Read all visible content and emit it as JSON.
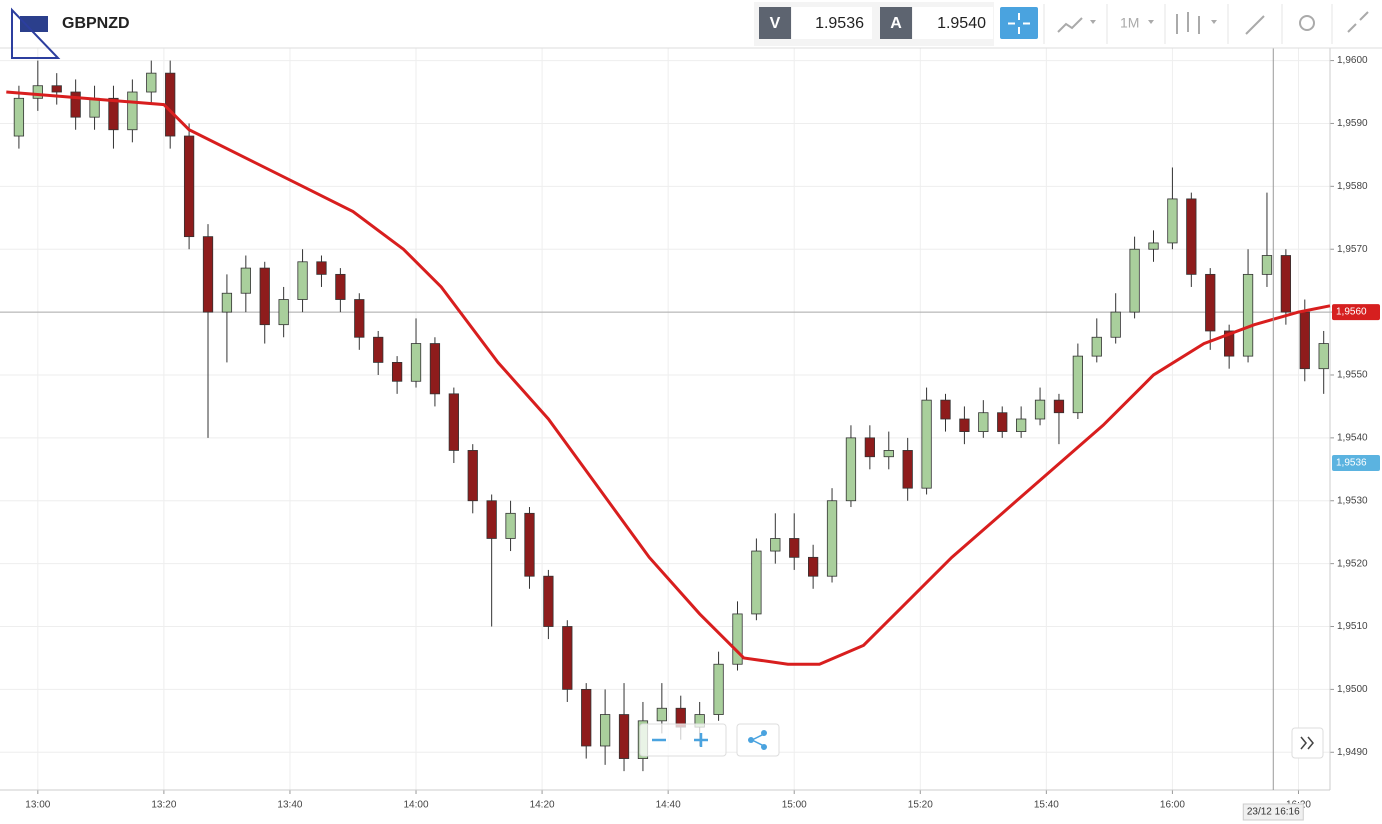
{
  "toolbar": {
    "symbol": "GBPNZD",
    "bid_label": "V",
    "bid": "1.9536",
    "ask_label": "A",
    "ask": "1.9540",
    "timeframe": "1M"
  },
  "chart_data": {
    "type": "candlestick",
    "up_color": "#a9cf9c",
    "down_color": "#8e1c1c",
    "x": [
      "12:57",
      "13:00",
      "13:03",
      "13:06",
      "13:09",
      "13:12",
      "13:15",
      "13:18",
      "13:21",
      "13:24",
      "13:27",
      "13:30",
      "13:33",
      "13:36",
      "13:39",
      "13:42",
      "13:45",
      "13:48",
      "13:51",
      "13:54",
      "13:57",
      "14:00",
      "14:03",
      "14:06",
      "14:09",
      "14:12",
      "14:15",
      "14:18",
      "14:21",
      "14:24",
      "14:27",
      "14:30",
      "14:33",
      "14:36",
      "14:39",
      "14:42",
      "14:45",
      "14:48",
      "14:51",
      "14:54",
      "14:57",
      "15:00",
      "15:03",
      "15:06",
      "15:09",
      "15:12",
      "15:15",
      "15:18",
      "15:21",
      "15:24",
      "15:27",
      "15:30",
      "15:33",
      "15:36",
      "15:39",
      "15:42",
      "15:45",
      "15:48",
      "15:51",
      "15:54",
      "15:57",
      "16:00",
      "16:03",
      "16:06",
      "16:09",
      "16:12",
      "16:15",
      "16:18",
      "16:21",
      "16:24"
    ],
    "open": [
      1.9588,
      1.9594,
      1.9596,
      1.9595,
      1.9591,
      1.9594,
      1.9589,
      1.9595,
      1.9598,
      1.9588,
      1.9572,
      1.956,
      1.9563,
      1.9567,
      1.9558,
      1.9562,
      1.9568,
      1.9566,
      1.9562,
      1.9556,
      1.9552,
      1.9549,
      1.9555,
      1.9547,
      1.9538,
      1.953,
      1.9524,
      1.9528,
      1.9518,
      1.951,
      1.95,
      1.9491,
      1.9496,
      1.9489,
      1.9495,
      1.9497,
      1.9494,
      1.9496,
      1.9504,
      1.9512,
      1.9522,
      1.9524,
      1.9521,
      1.9518,
      1.953,
      1.954,
      1.9537,
      1.9538,
      1.9532,
      1.9546,
      1.9543,
      1.9541,
      1.9544,
      1.9541,
      1.9543,
      1.9546,
      1.9544,
      1.9553,
      1.9556,
      1.956,
      1.957,
      1.9571,
      1.9578,
      1.9566,
      1.9557,
      1.9553,
      1.9566,
      1.9569,
      1.956,
      1.9551
    ],
    "high": [
      1.9596,
      1.96,
      1.9598,
      1.9597,
      1.9596,
      1.9596,
      1.9597,
      1.96,
      1.96,
      1.959,
      1.9574,
      1.9566,
      1.9569,
      1.9568,
      1.9564,
      1.957,
      1.9569,
      1.9567,
      1.9563,
      1.9557,
      1.9553,
      1.9559,
      1.9556,
      1.9548,
      1.9539,
      1.9531,
      1.953,
      1.9529,
      1.9519,
      1.9511,
      1.9501,
      1.95,
      1.9501,
      1.9498,
      1.9501,
      1.9499,
      1.9498,
      1.9506,
      1.9514,
      1.9524,
      1.9528,
      1.9528,
      1.9523,
      1.9532,
      1.9542,
      1.9542,
      1.9541,
      1.954,
      1.9548,
      1.9547,
      1.9545,
      1.9546,
      1.9545,
      1.9545,
      1.9548,
      1.9547,
      1.9555,
      1.9559,
      1.9563,
      1.9572,
      1.9573,
      1.9583,
      1.9579,
      1.9567,
      1.9558,
      1.957,
      1.9579,
      1.957,
      1.9562,
      1.9557
    ],
    "low": [
      1.9586,
      1.9592,
      1.9593,
      1.9589,
      1.9589,
      1.9586,
      1.9587,
      1.9593,
      1.9586,
      1.957,
      1.954,
      1.9552,
      1.956,
      1.9555,
      1.9556,
      1.956,
      1.9564,
      1.956,
      1.9554,
      1.955,
      1.9547,
      1.9548,
      1.9545,
      1.9536,
      1.9528,
      1.951,
      1.9522,
      1.9516,
      1.9508,
      1.9498,
      1.9489,
      1.9488,
      1.9487,
      1.9487,
      1.9493,
      1.9492,
      1.9491,
      1.9495,
      1.9503,
      1.9511,
      1.952,
      1.9519,
      1.9516,
      1.9517,
      1.9529,
      1.9535,
      1.9535,
      1.953,
      1.9531,
      1.9541,
      1.9539,
      1.954,
      1.954,
      1.954,
      1.9542,
      1.9539,
      1.9543,
      1.9552,
      1.9555,
      1.9559,
      1.9568,
      1.957,
      1.9564,
      1.9554,
      1.9551,
      1.9552,
      1.9564,
      1.9558,
      1.9549,
      1.9547
    ],
    "close": [
      1.9594,
      1.9596,
      1.9595,
      1.9591,
      1.9594,
      1.9589,
      1.9595,
      1.9598,
      1.9588,
      1.9572,
      1.956,
      1.9563,
      1.9567,
      1.9558,
      1.9562,
      1.9568,
      1.9566,
      1.9562,
      1.9556,
      1.9552,
      1.9549,
      1.9555,
      1.9547,
      1.9538,
      1.953,
      1.9524,
      1.9528,
      1.9518,
      1.951,
      1.95,
      1.9491,
      1.9496,
      1.9489,
      1.9495,
      1.9497,
      1.9494,
      1.9496,
      1.9504,
      1.9512,
      1.9522,
      1.9524,
      1.9521,
      1.9518,
      1.953,
      1.954,
      1.9537,
      1.9538,
      1.9532,
      1.9546,
      1.9543,
      1.9541,
      1.9544,
      1.9541,
      1.9543,
      1.9546,
      1.9544,
      1.9553,
      1.9556,
      1.956,
      1.957,
      1.9571,
      1.9578,
      1.9566,
      1.9557,
      1.9553,
      1.9566,
      1.9569,
      1.956,
      1.9551,
      1.9555
    ],
    "overlay": {
      "type": "line",
      "color": "#d81e1e",
      "x": [
        "12:55",
        "13:20",
        "13:24",
        "13:34",
        "13:42",
        "13:50",
        "13:58",
        "14:04",
        "14:13",
        "14:21",
        "14:29",
        "14:37",
        "14:45",
        "14:52",
        "14:59",
        "15:04",
        "15:11",
        "15:17",
        "15:25",
        "15:33",
        "15:41",
        "15:49",
        "15:57",
        "16:05",
        "16:13",
        "16:20",
        "16:25"
      ],
      "values": [
        1.9595,
        1.9593,
        1.9589,
        1.9584,
        1.958,
        1.9576,
        1.957,
        1.9564,
        1.9552,
        1.9543,
        1.9532,
        1.9521,
        1.9512,
        1.9505,
        1.9504,
        1.9504,
        1.9507,
        1.9513,
        1.9521,
        1.9528,
        1.9535,
        1.9542,
        1.955,
        1.9555,
        1.9558,
        1.956,
        1.9561
      ]
    },
    "xlim": [
      "12:54",
      "16:25"
    ],
    "xticks": [
      "13:00",
      "13:20",
      "13:40",
      "14:00",
      "14:20",
      "14:40",
      "15:00",
      "15:20",
      "15:40",
      "16:00",
      "16:20"
    ],
    "ylim": [
      1.9484,
      1.9602
    ],
    "yticks": [
      {
        "value": 1.949,
        "label": "1,9490"
      },
      {
        "value": 1.95,
        "label": "1,9500"
      },
      {
        "value": 1.951,
        "label": "1,9510"
      },
      {
        "value": 1.952,
        "label": "1,9520"
      },
      {
        "value": 1.953,
        "label": "1,9530"
      },
      {
        "value": 1.954,
        "label": "1,9540"
      },
      {
        "value": 1.955,
        "label": "1,9550"
      },
      {
        "value": 1.956,
        "label": "1,9560"
      },
      {
        "value": 1.957,
        "label": "1,9570"
      },
      {
        "value": 1.958,
        "label": "1,9580"
      },
      {
        "value": 1.959,
        "label": "1,9590"
      },
      {
        "value": 1.96,
        "label": "1,9600"
      }
    ],
    "grid": true,
    "price_markers": [
      {
        "value": 1.956,
        "label": "1,9560",
        "color": "#d61f1f"
      },
      {
        "value": 1.9536,
        "label": "1,9536",
        "color": "#5bb3e0"
      }
    ],
    "crosshair": {
      "x": "16:16",
      "label": "23/12 16:16"
    }
  }
}
